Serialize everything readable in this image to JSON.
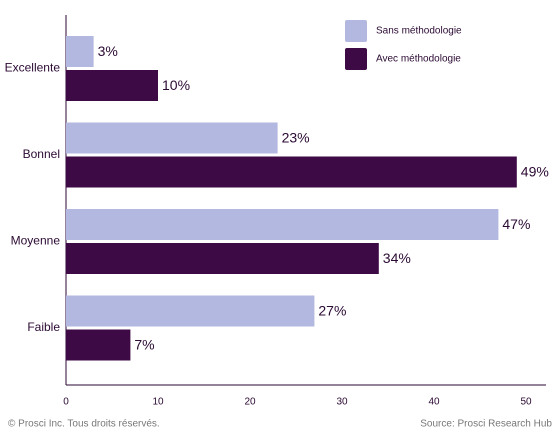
{
  "chart_data": {
    "type": "hbar",
    "categories": [
      "Excellente",
      "Bonnel",
      "Moyenne",
      "Faible"
    ],
    "series": [
      {
        "name": "Sans méthodologie",
        "color": "#b3b8e0",
        "values": [
          3,
          23,
          47,
          27
        ],
        "value_labels": [
          "3%",
          "23%",
          "47%",
          "27%"
        ]
      },
      {
        "name": "Avec méthodologie",
        "color": "#3d0a45",
        "values": [
          10,
          49,
          34,
          7
        ],
        "value_labels": [
          "10%",
          "49%",
          "34%",
          "7%"
        ]
      }
    ],
    "xlim": [
      0,
      50
    ],
    "xticks": [
      0,
      10,
      20,
      30,
      40,
      50
    ],
    "grid": false,
    "legend": "top-right",
    "footer": "© Prosci Inc. Tous droits réservés.",
    "source": "Source: Prosci Research Hub"
  }
}
